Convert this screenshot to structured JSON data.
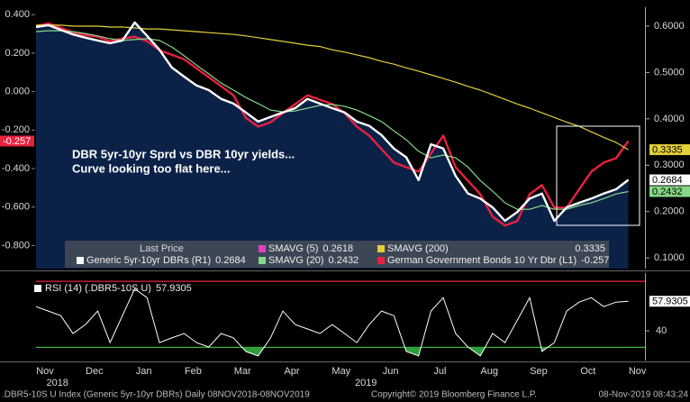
{
  "chart_data": {
    "type": "line",
    "categories": [
      "Nov",
      null,
      null,
      null,
      "Dec",
      null,
      null,
      null,
      "Jan",
      null,
      null,
      null,
      "Feb",
      null,
      null,
      null,
      "Mar",
      null,
      null,
      null,
      "Apr",
      null,
      null,
      null,
      "May",
      null,
      null,
      null,
      "Jun",
      null,
      null,
      null,
      "Jul",
      null,
      null,
      null,
      "Aug",
      null,
      null,
      null,
      "Sep",
      null,
      null,
      null,
      "Oct",
      null,
      null,
      null,
      "Nov"
    ],
    "year_labels": [
      null,
      "2018",
      null,
      null,
      null,
      null,
      null,
      null,
      null,
      null,
      null,
      null,
      null,
      null,
      null,
      null,
      null,
      null,
      null,
      null,
      null,
      null,
      null,
      null,
      null,
      null,
      "2019",
      null,
      null,
      null,
      null,
      null,
      null,
      null,
      null,
      null,
      null,
      null,
      null,
      null,
      null,
      null,
      null,
      null,
      null,
      null,
      null,
      null,
      null
    ],
    "ylim": [
      -0.92,
      0.42
    ],
    "yticks": [
      {
        "value": 0.4,
        "label": "0.400"
      },
      {
        "value": 0.2,
        "label": "0.200"
      },
      {
        "value": 0,
        "label": "0.000"
      },
      {
        "value": -0.2,
        "label": "-0.200"
      },
      {
        "value": -0.4,
        "label": "-0.400"
      },
      {
        "value": -0.6,
        "label": "-0.600"
      },
      {
        "value": -0.8,
        "label": "-0.800"
      }
    ],
    "y2lim": [
      0.077,
      0.633
    ],
    "y2ticks": [
      {
        "value": 0.6,
        "label": "0.6000"
      },
      {
        "value": 0.5,
        "label": "0.5000"
      },
      {
        "value": 0.4,
        "label": "0.4000"
      },
      {
        "value": 0.3,
        "label": "0.3000"
      },
      {
        "value": 0.2,
        "label": "0.2000"
      },
      {
        "value": 0.1,
        "label": "0.1000"
      }
    ],
    "area_color": "#0c2148",
    "series": [
      {
        "name": "Generic 5yr-10yr DBRs (R1)",
        "color": "#ffffff",
        "axis": "y2",
        "area": true,
        "values": [
          0.598,
          0.602,
          0.592,
          0.582,
          0.575,
          0.569,
          0.563,
          0.569,
          0.608,
          0.579,
          0.549,
          0.511,
          0.491,
          0.472,
          0.462,
          0.443,
          0.433,
          0.414,
          0.394,
          0.404,
          0.414,
          0.423,
          0.443,
          0.433,
          0.423,
          0.414,
          0.394,
          0.385,
          0.365,
          0.336,
          0.317,
          0.268,
          0.345,
          0.336,
          0.277,
          0.239,
          0.228,
          0.209,
          0.18,
          0.199,
          0.228,
          0.239,
          0.18,
          0.209,
          0.219,
          0.228,
          0.239,
          0.248,
          0.2684
        ]
      },
      {
        "name": "SMAVG (20)",
        "color": "#86d886",
        "axis": "y2",
        "values": [
          0.588,
          0.59,
          0.59,
          0.588,
          0.584,
          0.579,
          0.573,
          0.569,
          0.571,
          0.573,
          0.569,
          0.555,
          0.536,
          0.516,
          0.497,
          0.477,
          0.462,
          0.446,
          0.433,
          0.419,
          0.415,
          0.417,
          0.423,
          0.429,
          0.431,
          0.427,
          0.419,
          0.407,
          0.394,
          0.374,
          0.355,
          0.33,
          0.316,
          0.322,
          0.316,
          0.296,
          0.267,
          0.244,
          0.219,
          0.205,
          0.205,
          0.213,
          0.205,
          0.205,
          0.213,
          0.219,
          0.228,
          0.238,
          0.2432
        ]
      },
      {
        "name": "SMAVG (200)",
        "color": "#e2cf3a",
        "axis": "y2",
        "values": [
          0.602,
          0.602,
          0.602,
          0.6,
          0.6,
          0.6,
          0.598,
          0.598,
          0.596,
          0.594,
          0.594,
          0.592,
          0.59,
          0.588,
          0.586,
          0.584,
          0.582,
          0.579,
          0.575,
          0.571,
          0.567,
          0.563,
          0.559,
          0.556,
          0.549,
          0.544,
          0.538,
          0.532,
          0.524,
          0.518,
          0.51,
          0.503,
          0.495,
          0.487,
          0.479,
          0.47,
          0.462,
          0.452,
          0.442,
          0.432,
          0.423,
          0.413,
          0.403,
          0.393,
          0.384,
          0.372,
          0.36,
          0.349,
          0.3335
        ]
      },
      {
        "name": "German Government Bonds 10 Yr Dbr (L1)",
        "color": "#e8213f",
        "values": [
          0.341,
          0.355,
          0.332,
          0.308,
          0.294,
          0.285,
          0.262,
          0.276,
          0.285,
          0.262,
          0.215,
          0.192,
          0.168,
          0.121,
          0.075,
          0.028,
          -0.019,
          -0.136,
          -0.182,
          -0.159,
          -0.112,
          -0.065,
          -0.019,
          -0.042,
          -0.065,
          -0.112,
          -0.182,
          -0.229,
          -0.299,
          -0.369,
          -0.393,
          -0.416,
          -0.322,
          -0.229,
          -0.393,
          -0.463,
          -0.533,
          -0.65,
          -0.696,
          -0.673,
          -0.533,
          -0.486,
          -0.603,
          -0.603,
          -0.509,
          -0.416,
          -0.369,
          -0.346,
          -0.257
        ]
      }
    ],
    "legend_title": "Last Price",
    "legend_extra": {
      "name": "SMAVG (5)",
      "color": "#e040c0",
      "value": 0.2618
    },
    "annotation": [
      "DBR 5yr-10yr Sprd vs DBR 10yr yields...",
      "Curve looking too flat here..."
    ],
    "rsi": {
      "name": "RSI (14) (.DBR5-10S U)",
      "color": "#ffffff",
      "fill_color": "#2e9e3a",
      "ylim": [
        22,
        75
      ],
      "yticks": [
        40
      ],
      "levels": [
        {
          "value": 70,
          "color": "#e8213f"
        },
        {
          "value": 30,
          "color": "#3cb43c"
        }
      ],
      "values": [
        54.7,
        52.0,
        49.2,
        38.4,
        43.8,
        52.0,
        32.9,
        49.2,
        65.5,
        60.1,
        32.9,
        35.7,
        38.4,
        32.9,
        30.2,
        38.4,
        35.7,
        27.5,
        24.8,
        35.7,
        52.0,
        43.8,
        41.1,
        38.4,
        43.8,
        38.4,
        32.9,
        43.8,
        52.0,
        49.2,
        27.5,
        24.8,
        52.0,
        60.1,
        38.4,
        30.2,
        24.8,
        38.4,
        32.9,
        46.5,
        60.1,
        27.5,
        32.9,
        52.0,
        57.4,
        60.1,
        54.7,
        57.4,
        57.9305
      ]
    },
    "footer": {
      "left": ".DBR5-10S U Index (Generic 5yr-10yr DBRs)  Daily 08NOV2018-08NOV2019",
      "center": "Copyright© 2019 Bloomberg Finance L.P.",
      "right": "08-Nov-2019 08:43:24"
    }
  }
}
